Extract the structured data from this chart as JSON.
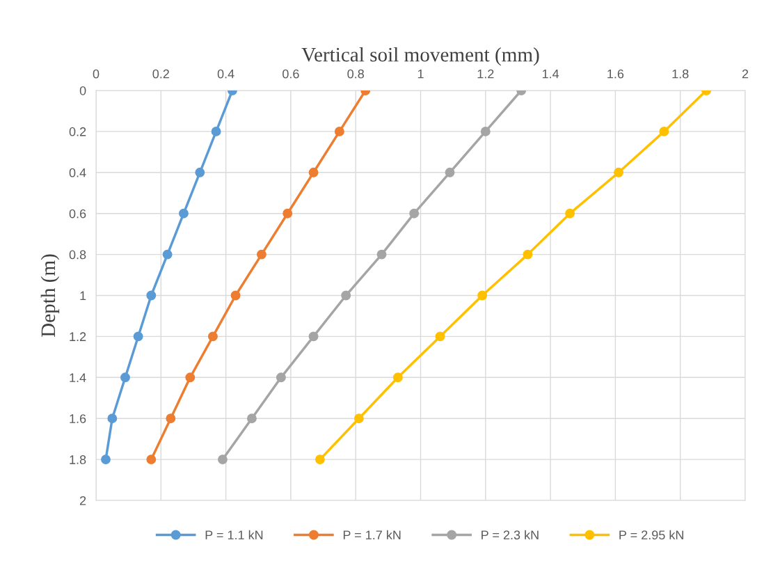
{
  "chart_data": {
    "type": "line",
    "xlabel": "Vertical soil movement (mm)",
    "ylabel": "Depth (m)",
    "xlim": [
      0,
      2
    ],
    "xticks": [
      0,
      0.2,
      0.4,
      0.6,
      0.8,
      1,
      1.2,
      1.4,
      1.6,
      1.8,
      2
    ],
    "ylim": [
      2,
      0
    ],
    "yticks": [
      0,
      0.2,
      0.4,
      0.6,
      0.8,
      1,
      1.2,
      1.4,
      1.6,
      1.8,
      2
    ],
    "grid": true,
    "legend": "bottom",
    "marker": "circle",
    "line_style": "solid",
    "series": [
      {
        "name": "P = 1.1 kN",
        "color": "#5b9bd5",
        "x": [
          0.42,
          0.37,
          0.32,
          0.27,
          0.22,
          0.17,
          0.13,
          0.09,
          0.05,
          0.03
        ],
        "values": [
          0,
          0.2,
          0.4,
          0.6,
          0.8,
          1,
          1.2,
          1.4,
          1.6,
          1.8
        ]
      },
      {
        "name": "P = 1.7 kN",
        "color": "#ed7d31",
        "x": [
          0.83,
          0.75,
          0.67,
          0.59,
          0.51,
          0.43,
          0.36,
          0.29,
          0.23,
          0.17
        ],
        "values": [
          0,
          0.2,
          0.4,
          0.6,
          0.8,
          1,
          1.2,
          1.4,
          1.6,
          1.8
        ]
      },
      {
        "name": "P = 2.3 kN",
        "color": "#a5a5a5",
        "x": [
          1.31,
          1.2,
          1.09,
          0.98,
          0.88,
          0.77,
          0.67,
          0.57,
          0.48,
          0.39
        ],
        "values": [
          0,
          0.2,
          0.4,
          0.6,
          0.8,
          1,
          1.2,
          1.4,
          1.6,
          1.8
        ]
      },
      {
        "name": "P = 2.95 kN",
        "color": "#ffc000",
        "x": [
          1.88,
          1.75,
          1.61,
          1.46,
          1.33,
          1.19,
          1.06,
          0.93,
          0.81,
          0.69
        ],
        "values": [
          0,
          0.2,
          0.4,
          0.6,
          0.8,
          1,
          1.2,
          1.4,
          1.6,
          1.8
        ]
      }
    ]
  }
}
